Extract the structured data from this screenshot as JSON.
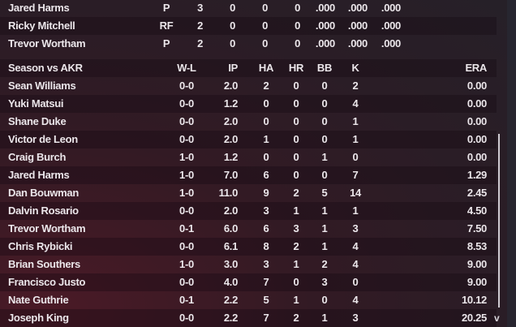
{
  "batting_rows": [
    {
      "name": "Jared Harms",
      "pos": "P",
      "v": [
        "3",
        "0",
        "0",
        "0",
        ".000",
        ".000",
        ".000"
      ]
    },
    {
      "name": "Ricky Mitchell",
      "pos": "RF",
      "v": [
        "2",
        "0",
        "0",
        "0",
        ".000",
        ".000",
        ".000"
      ]
    },
    {
      "name": "Trevor Wortham",
      "pos": "P",
      "v": [
        "2",
        "0",
        "0",
        "0",
        ".000",
        ".000",
        ".000"
      ]
    }
  ],
  "pitching": {
    "title": "Season vs AKR",
    "headers": [
      "W-L",
      "IP",
      "HA",
      "HR",
      "BB",
      "K",
      "ERA"
    ],
    "rows": [
      {
        "name": "Sean Williams",
        "v": [
          "0-0",
          "2.0",
          "2",
          "0",
          "0",
          "2",
          "0.00"
        ]
      },
      {
        "name": "Yuki Matsui",
        "v": [
          "0-0",
          "1.2",
          "0",
          "0",
          "0",
          "4",
          "0.00"
        ]
      },
      {
        "name": "Shane Duke",
        "v": [
          "0-0",
          "2.0",
          "0",
          "0",
          "0",
          "1",
          "0.00"
        ]
      },
      {
        "name": "Victor de Leon",
        "v": [
          "0-0",
          "2.0",
          "1",
          "0",
          "0",
          "1",
          "0.00"
        ]
      },
      {
        "name": "Craig Burch",
        "v": [
          "1-0",
          "1.2",
          "0",
          "0",
          "1",
          "0",
          "0.00"
        ]
      },
      {
        "name": "Jared Harms",
        "v": [
          "1-0",
          "7.0",
          "6",
          "0",
          "0",
          "7",
          "1.29"
        ]
      },
      {
        "name": "Dan Bouwman",
        "v": [
          "1-0",
          "11.0",
          "9",
          "2",
          "5",
          "14",
          "2.45"
        ]
      },
      {
        "name": "Dalvin Rosario",
        "v": [
          "0-0",
          "2.0",
          "3",
          "1",
          "1",
          "1",
          "4.50"
        ]
      },
      {
        "name": "Trevor Wortham",
        "v": [
          "0-1",
          "6.0",
          "6",
          "3",
          "1",
          "3",
          "7.50"
        ]
      },
      {
        "name": "Chris Rybicki",
        "v": [
          "0-0",
          "6.1",
          "8",
          "2",
          "1",
          "4",
          "8.53"
        ]
      },
      {
        "name": "Brian Southers",
        "v": [
          "1-0",
          "3.0",
          "3",
          "1",
          "2",
          "4",
          "9.00"
        ]
      },
      {
        "name": "Francisco Justo",
        "v": [
          "0-0",
          "4.0",
          "7",
          "0",
          "3",
          "0",
          "9.00"
        ]
      },
      {
        "name": "Nate Guthrie",
        "v": [
          "0-1",
          "2.2",
          "5",
          "1",
          "0",
          "4",
          "10.12"
        ]
      },
      {
        "name": "Joseph King",
        "v": [
          "0-0",
          "2.2",
          "7",
          "2",
          "1",
          "3",
          "20.25"
        ]
      }
    ]
  },
  "scroll_down_glyph": "v"
}
